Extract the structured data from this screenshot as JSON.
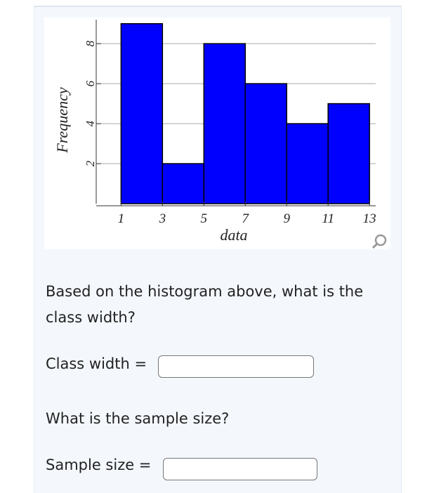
{
  "chart_data": {
    "type": "histogram",
    "bins": [
      1,
      3,
      5,
      7,
      9,
      11,
      13
    ],
    "values": [
      9,
      2,
      8,
      6,
      4,
      5
    ],
    "color": "#0000ff",
    "xlabel": "data",
    "ylabel": "Frequency",
    "xlim": [
      -0.2,
      13.3
    ],
    "ylim": [
      0,
      9.2
    ],
    "xticks": [
      1,
      3,
      5,
      7,
      9,
      11,
      13
    ],
    "yticks": [
      2,
      4,
      6,
      8
    ],
    "grid": true
  },
  "questions": [
    {
      "text": "Based on the histogram above, what is the class width?",
      "prompt": "Class width ="
    },
    {
      "text": "What is the sample size?",
      "prompt": "Sample size ="
    }
  ]
}
